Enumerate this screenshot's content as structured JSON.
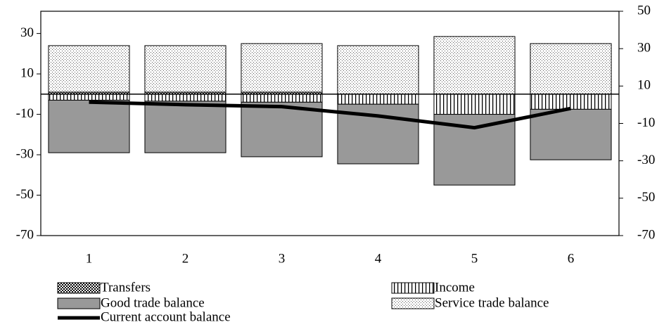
{
  "chart_data": {
    "type": "stacked_bar_line",
    "categories": [
      "1",
      "2",
      "3",
      "4",
      "5",
      "6"
    ],
    "series": [
      {
        "name": "Transfers",
        "color": "#333333",
        "values": [
          1,
          1,
          1,
          0,
          0,
          0
        ]
      },
      {
        "name": "Income",
        "color": "#ffffff",
        "values": [
          -3,
          -3.5,
          -4,
          -5,
          -10,
          -7.5
        ]
      },
      {
        "name": "Good trade balance",
        "color": "#999999",
        "values": [
          -26,
          -25.5,
          -27,
          -29.5,
          -35,
          -25
        ]
      },
      {
        "name": "Service trade balance",
        "color": "#ffffff",
        "values": [
          23,
          23,
          24,
          24,
          28.5,
          25
        ]
      },
      {
        "name": "Current account balance",
        "color": "#000000",
        "axis": "y2",
        "values": [
          1.4,
          0,
          -1,
          -6,
          -12.3,
          -2
        ]
      }
    ],
    "ylim": [
      -70,
      41
    ],
    "yticks": [
      -70,
      -50,
      -30,
      -10,
      10,
      30
    ],
    "y2lim": [
      -70,
      50
    ],
    "y2ticks": [
      -70,
      -50,
      -30,
      -10,
      10,
      30,
      50
    ]
  }
}
